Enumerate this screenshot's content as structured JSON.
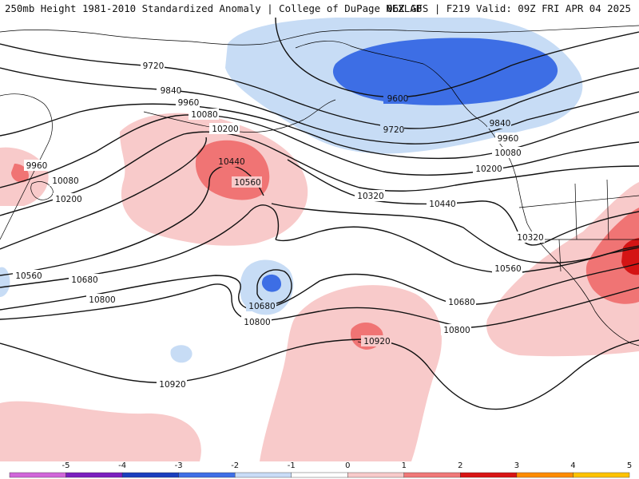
{
  "header": {
    "title_left": "250mb Height 1981-2010 Standardized Anomaly | College of DuPage NEXLAB",
    "title_right": "06Z GFS | F219 Valid: 09Z FRI APR 04 2025"
  },
  "contour_labels": [
    "9720",
    "9840",
    "9960",
    "10080",
    "10200",
    "10440",
    "10560",
    "9960",
    "10080",
    "10200",
    "10560",
    "10680",
    "10800",
    "10680",
    "10800",
    "10920",
    "10920",
    "10320",
    "10440",
    "10560",
    "10680",
    "10800",
    "9600",
    "9720",
    "9840",
    "9960",
    "10080",
    "10200",
    "10320"
  ],
  "colorbar": {
    "ticks": [
      "-5",
      "-4",
      "-3",
      "-2",
      "-1",
      "0",
      "1",
      "2",
      "3",
      "4",
      "5"
    ],
    "colors": [
      "#d066d9",
      "#7a1fbf",
      "#1a3fbf",
      "#3f6fe6",
      "#c9dcf7",
      "#ffffff",
      "#f8caca",
      "#f07878",
      "#d81414",
      "#ff8c00",
      "#ffc300"
    ]
  },
  "fills": {
    "light_blue": "#c7dcf5",
    "blue": "#3d6ee5",
    "light_pink": "#f8caca",
    "pink": "#f07474",
    "red": "#d41414"
  }
}
